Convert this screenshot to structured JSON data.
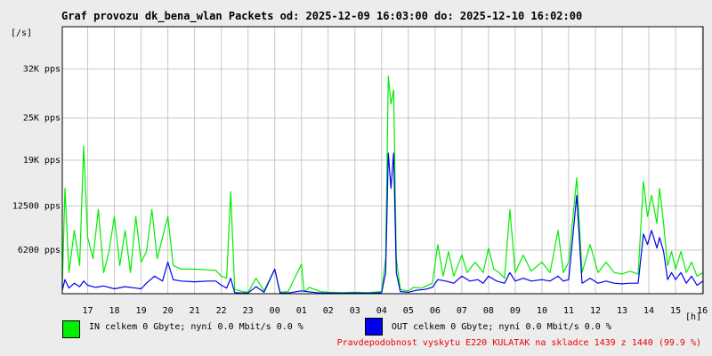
{
  "title": "Graf provozu dk_bena_wlan Packets od: 2025-12-09 16:03:00 do: 2025-12-10 16:02:00",
  "colors": {
    "in": "#00ee00",
    "out": "#0000ee",
    "footer": "#ee0000"
  },
  "legend": {
    "in_text": "IN celkem 0 Gbyte; nyní   0.0 Mbit/s 0.0 %",
    "out_text": "OUT celkem 0 Gbyte; nyní   0.0 Mbit/s 0.0 %"
  },
  "footer_note": "Pravdepodobnost vyskytu E220 KULATAK na skladce 1439 z 1440 (99.9 %)",
  "chart_data": {
    "type": "line",
    "title": "Graf provozu dk_bena_wlan Packets od: 2025-12-09 16:03:00 do: 2025-12-10 16:02:00",
    "ylabel": "[/s]",
    "xlabel": "[h]",
    "ylim": [
      0,
      38000
    ],
    "xlim": [
      16.05,
      40.03
    ],
    "grid": true,
    "y_ticks": [
      {
        "value": 6200,
        "label": "6200 pps"
      },
      {
        "value": 12500,
        "label": "12500 pps"
      },
      {
        "value": 19000,
        "label": "19K pps"
      },
      {
        "value": 25000,
        "label": "25K pps"
      },
      {
        "value": 32000,
        "label": "32K pps"
      }
    ],
    "x_ticks": [
      {
        "value": 17,
        "label": "17"
      },
      {
        "value": 18,
        "label": "18"
      },
      {
        "value": 19,
        "label": "19"
      },
      {
        "value": 20,
        "label": "20"
      },
      {
        "value": 21,
        "label": "21"
      },
      {
        "value": 22,
        "label": "22"
      },
      {
        "value": 23,
        "label": "23"
      },
      {
        "value": 24,
        "label": "00"
      },
      {
        "value": 25,
        "label": "01"
      },
      {
        "value": 26,
        "label": "02"
      },
      {
        "value": 27,
        "label": "03"
      },
      {
        "value": 28,
        "label": "04"
      },
      {
        "value": 29,
        "label": "05"
      },
      {
        "value": 30,
        "label": "06"
      },
      {
        "value": 31,
        "label": "07"
      },
      {
        "value": 32,
        "label": "08"
      },
      {
        "value": 33,
        "label": "09"
      },
      {
        "value": 34,
        "label": "10"
      },
      {
        "value": 35,
        "label": "11"
      },
      {
        "value": 36,
        "label": "12"
      },
      {
        "value": 37,
        "label": "13"
      },
      {
        "value": 38,
        "label": "14"
      },
      {
        "value": 39,
        "label": "15"
      },
      {
        "value": 40,
        "label": "16"
      }
    ],
    "series": [
      {
        "name": "IN",
        "points": [
          [
            16.05,
            1200
          ],
          [
            16.15,
            15000
          ],
          [
            16.3,
            3000
          ],
          [
            16.5,
            9000
          ],
          [
            16.7,
            4000
          ],
          [
            16.85,
            21000
          ],
          [
            17.0,
            8000
          ],
          [
            17.2,
            5000
          ],
          [
            17.4,
            12000
          ],
          [
            17.6,
            3000
          ],
          [
            17.8,
            6000
          ],
          [
            18.0,
            11000
          ],
          [
            18.2,
            4000
          ],
          [
            18.4,
            9000
          ],
          [
            18.6,
            3000
          ],
          [
            18.8,
            11000
          ],
          [
            19.0,
            4500
          ],
          [
            19.2,
            6000
          ],
          [
            19.4,
            12000
          ],
          [
            19.6,
            5000
          ],
          [
            19.8,
            8000
          ],
          [
            20.0,
            11000
          ],
          [
            20.2,
            4000
          ],
          [
            20.5,
            3500
          ],
          [
            21.0,
            3500
          ],
          [
            21.5,
            3400
          ],
          [
            21.8,
            3300
          ],
          [
            22.0,
            2500
          ],
          [
            22.2,
            2200
          ],
          [
            22.35,
            14500
          ],
          [
            22.5,
            600
          ],
          [
            22.8,
            300
          ],
          [
            23.0,
            200
          ],
          [
            23.3,
            2200
          ],
          [
            23.6,
            400
          ],
          [
            24.0,
            3500
          ],
          [
            24.2,
            200
          ],
          [
            24.5,
            300
          ],
          [
            25.0,
            4200
          ],
          [
            25.1,
            300
          ],
          [
            25.3,
            900
          ],
          [
            25.7,
            300
          ],
          [
            26.0,
            200
          ],
          [
            26.5,
            150
          ],
          [
            27.0,
            200
          ],
          [
            27.5,
            150
          ],
          [
            28.0,
            300
          ],
          [
            28.15,
            5000
          ],
          [
            28.25,
            31000
          ],
          [
            28.35,
            27000
          ],
          [
            28.45,
            29000
          ],
          [
            28.55,
            5000
          ],
          [
            28.7,
            600
          ],
          [
            29.0,
            400
          ],
          [
            29.2,
            900
          ],
          [
            29.5,
            800
          ],
          [
            29.9,
            1500
          ],
          [
            30.1,
            7000
          ],
          [
            30.3,
            2500
          ],
          [
            30.5,
            6000
          ],
          [
            30.7,
            2500
          ],
          [
            31.0,
            5500
          ],
          [
            31.2,
            3000
          ],
          [
            31.5,
            4500
          ],
          [
            31.8,
            3000
          ],
          [
            32.0,
            6500
          ],
          [
            32.2,
            3500
          ],
          [
            32.4,
            3000
          ],
          [
            32.6,
            2200
          ],
          [
            32.8,
            12000
          ],
          [
            33.0,
            3000
          ],
          [
            33.3,
            5500
          ],
          [
            33.6,
            3200
          ],
          [
            34.0,
            4500
          ],
          [
            34.3,
            3000
          ],
          [
            34.6,
            9000
          ],
          [
            34.8,
            3000
          ],
          [
            35.0,
            4500
          ],
          [
            35.3,
            16500
          ],
          [
            35.5,
            3000
          ],
          [
            35.8,
            7000
          ],
          [
            36.1,
            3000
          ],
          [
            36.4,
            4500
          ],
          [
            36.7,
            3000
          ],
          [
            37.0,
            2800
          ],
          [
            37.3,
            3200
          ],
          [
            37.6,
            2800
          ],
          [
            37.8,
            16000
          ],
          [
            37.95,
            11000
          ],
          [
            38.1,
            14000
          ],
          [
            38.3,
            10000
          ],
          [
            38.4,
            15000
          ],
          [
            38.55,
            10000
          ],
          [
            38.7,
            4000
          ],
          [
            38.85,
            6000
          ],
          [
            39.0,
            3500
          ],
          [
            39.2,
            6000
          ],
          [
            39.4,
            3000
          ],
          [
            39.6,
            4500
          ],
          [
            39.8,
            2500
          ],
          [
            40.03,
            3000
          ]
        ]
      },
      {
        "name": "OUT",
        "points": [
          [
            16.05,
            500
          ],
          [
            16.15,
            2000
          ],
          [
            16.3,
            800
          ],
          [
            16.5,
            1500
          ],
          [
            16.7,
            1000
          ],
          [
            16.85,
            1800
          ],
          [
            17.0,
            1200
          ],
          [
            17.3,
            900
          ],
          [
            17.6,
            1100
          ],
          [
            18.0,
            700
          ],
          [
            18.4,
            1000
          ],
          [
            18.8,
            800
          ],
          [
            19.0,
            700
          ],
          [
            19.2,
            1500
          ],
          [
            19.5,
            2500
          ],
          [
            19.8,
            1800
          ],
          [
            20.0,
            4500
          ],
          [
            20.2,
            2000
          ],
          [
            20.5,
            1800
          ],
          [
            21.0,
            1700
          ],
          [
            21.5,
            1800
          ],
          [
            21.8,
            1800
          ],
          [
            22.0,
            1200
          ],
          [
            22.2,
            800
          ],
          [
            22.35,
            2200
          ],
          [
            22.5,
            150
          ],
          [
            22.8,
            100
          ],
          [
            23.0,
            100
          ],
          [
            23.3,
            1000
          ],
          [
            23.6,
            200
          ],
          [
            24.0,
            3500
          ],
          [
            24.2,
            100
          ],
          [
            24.5,
            100
          ],
          [
            25.0,
            400
          ],
          [
            25.3,
            250
          ],
          [
            25.7,
            100
          ],
          [
            26.0,
            100
          ],
          [
            26.5,
            80
          ],
          [
            27.0,
            100
          ],
          [
            27.5,
            80
          ],
          [
            28.0,
            150
          ],
          [
            28.15,
            3000
          ],
          [
            28.25,
            20000
          ],
          [
            28.35,
            15000
          ],
          [
            28.45,
            20000
          ],
          [
            28.55,
            3000
          ],
          [
            28.7,
            300
          ],
          [
            29.0,
            200
          ],
          [
            29.3,
            500
          ],
          [
            29.6,
            600
          ],
          [
            29.9,
            900
          ],
          [
            30.1,
            2000
          ],
          [
            30.4,
            1800
          ],
          [
            30.7,
            1500
          ],
          [
            31.0,
            2500
          ],
          [
            31.3,
            1800
          ],
          [
            31.6,
            2000
          ],
          [
            31.8,
            1500
          ],
          [
            32.0,
            2500
          ],
          [
            32.3,
            1800
          ],
          [
            32.6,
            1500
          ],
          [
            32.8,
            3000
          ],
          [
            33.0,
            1800
          ],
          [
            33.3,
            2200
          ],
          [
            33.6,
            1800
          ],
          [
            34.0,
            2000
          ],
          [
            34.3,
            1800
          ],
          [
            34.6,
            2500
          ],
          [
            34.8,
            1800
          ],
          [
            35.0,
            2000
          ],
          [
            35.3,
            14000
          ],
          [
            35.5,
            1500
          ],
          [
            35.8,
            2200
          ],
          [
            36.1,
            1500
          ],
          [
            36.4,
            1800
          ],
          [
            36.7,
            1500
          ],
          [
            37.0,
            1400
          ],
          [
            37.3,
            1500
          ],
          [
            37.6,
            1500
          ],
          [
            37.8,
            8500
          ],
          [
            37.95,
            7000
          ],
          [
            38.1,
            9000
          ],
          [
            38.3,
            6500
          ],
          [
            38.4,
            8000
          ],
          [
            38.55,
            6000
          ],
          [
            38.7,
            2000
          ],
          [
            38.85,
            3000
          ],
          [
            39.0,
            2000
          ],
          [
            39.2,
            3000
          ],
          [
            39.4,
            1500
          ],
          [
            39.6,
            2500
          ],
          [
            39.8,
            1200
          ],
          [
            40.03,
            1800
          ]
        ]
      }
    ]
  }
}
